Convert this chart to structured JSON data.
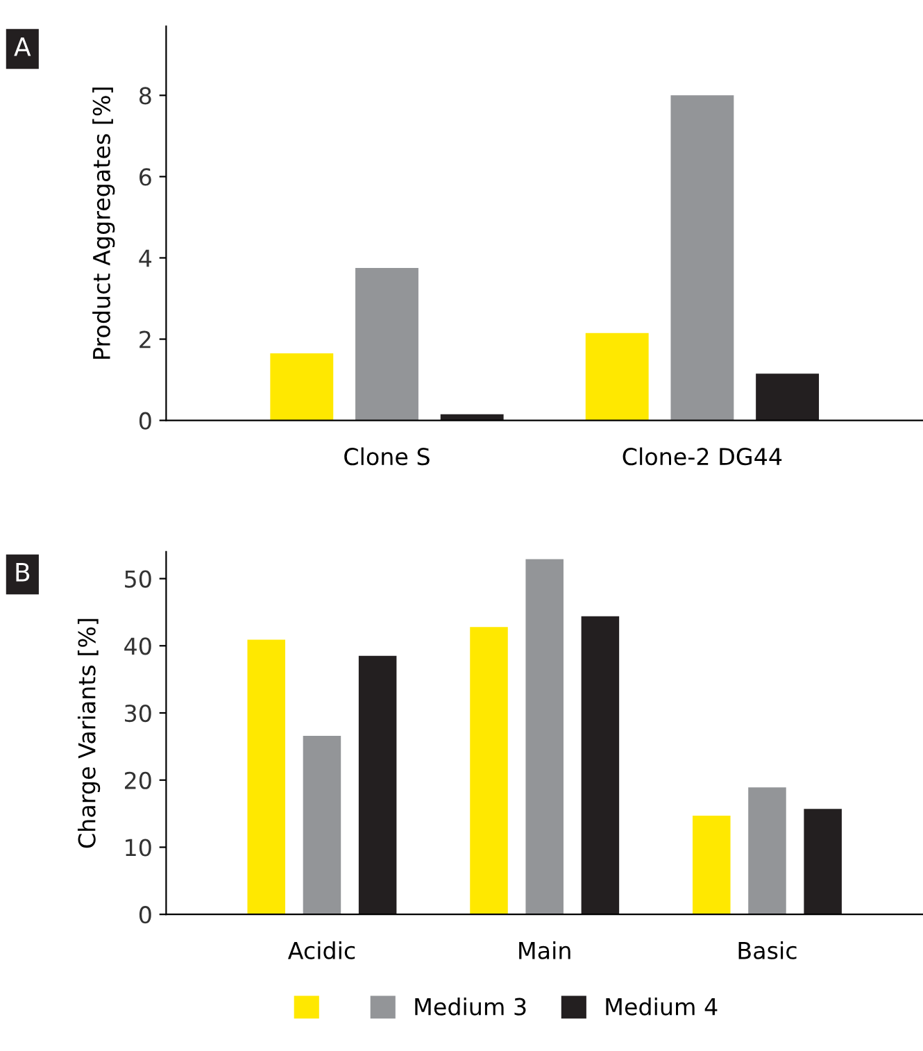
{
  "chart_data": [
    {
      "type": "bar",
      "ylabel": "Product Aggregates [%]",
      "annotations": [
        "A"
      ],
      "categories": [
        "Clone S",
        "Clone-2 DG44"
      ],
      "ylim": [
        0,
        9.7
      ],
      "yticks": [
        0,
        2,
        4,
        6,
        8
      ],
      "grid": false,
      "legend": false,
      "series": [
        {
          "color": "#ffe800",
          "values": [
            1.65,
            2.15
          ]
        },
        {
          "color": "#939598",
          "values": [
            3.75,
            8.0
          ]
        },
        {
          "color": "#231f20",
          "values": [
            0.15,
            1.15
          ]
        }
      ]
    },
    {
      "type": "bar",
      "ylabel": "Charge Variants [%]",
      "annotations": [
        "B"
      ],
      "categories": [
        "Acidic",
        "Main",
        "Basic"
      ],
      "ylim": [
        0,
        54
      ],
      "yticks": [
        0,
        10,
        20,
        30,
        40,
        50
      ],
      "grid": false,
      "legend": "bottom",
      "series": [
        {
          "color": "#ffe800",
          "values": [
            40.9,
            42.8,
            14.7
          ]
        },
        {
          "name": "Medium 3",
          "color": "#939598",
          "values": [
            26.6,
            52.9,
            18.9
          ]
        },
        {
          "name": "Medium 4",
          "color": "#231f20",
          "values": [
            38.5,
            44.4,
            15.7
          ]
        }
      ]
    }
  ]
}
